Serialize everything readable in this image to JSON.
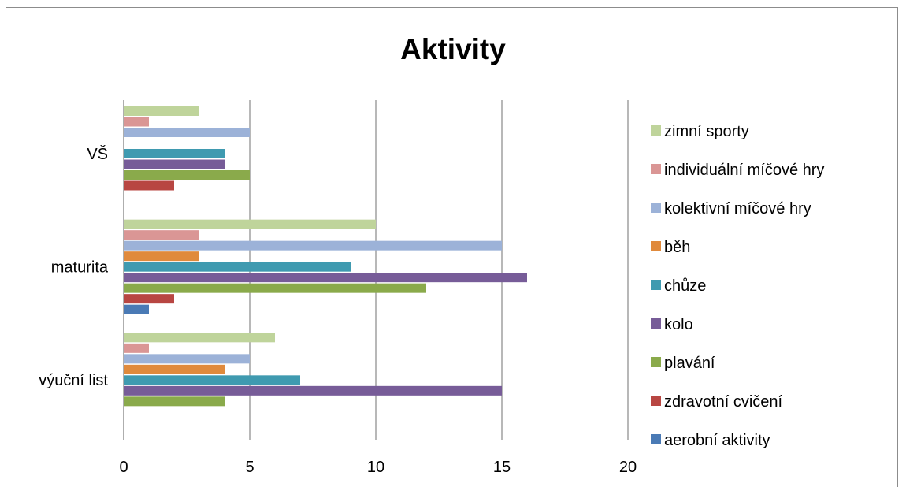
{
  "chart_data": {
    "type": "bar",
    "orientation": "horizontal",
    "title": "Aktivity",
    "categories": [
      "výuční list",
      "maturita",
      "VŠ"
    ],
    "xlim": [
      0,
      20
    ],
    "xticks": [
      0,
      5,
      10,
      15,
      20
    ],
    "grid": "vertical",
    "legend": "right",
    "series": [
      {
        "name": "aerobní aktivity",
        "color": "#4a7ab5",
        "values": [
          0,
          1,
          0
        ]
      },
      {
        "name": "zdravotní cvičení",
        "color": "#b84642",
        "values": [
          0,
          2,
          2
        ]
      },
      {
        "name": "plavání",
        "color": "#8aaa4b",
        "values": [
          4,
          12,
          5
        ]
      },
      {
        "name": "kolo",
        "color": "#775c98",
        "values": [
          15,
          16,
          4
        ]
      },
      {
        "name": "chůze",
        "color": "#3f9ab0",
        "values": [
          7,
          9,
          4
        ]
      },
      {
        "name": "běh",
        "color": "#e08a3c",
        "values": [
          4,
          3,
          0
        ]
      },
      {
        "name": "kolektivní míčové hry",
        "color": "#9cb2d8",
        "values": [
          5,
          15,
          5
        ]
      },
      {
        "name": "individuální míčové hry",
        "color": "#da9695",
        "values": [
          1,
          3,
          1
        ]
      },
      {
        "name": "zimní sporty",
        "color": "#bfd49b",
        "values": [
          6,
          10,
          3
        ]
      }
    ]
  }
}
